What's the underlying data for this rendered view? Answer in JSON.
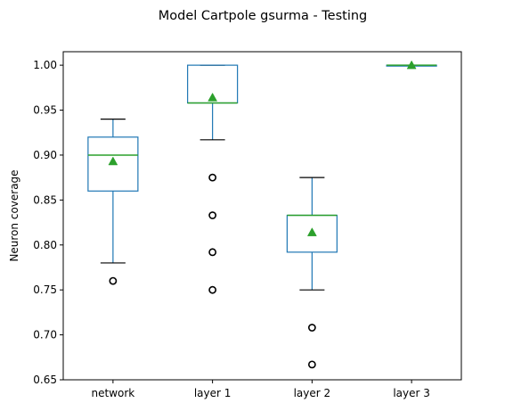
{
  "chart_data": {
    "type": "box",
    "title": "Model Cartpole gsurma - Testing",
    "xlabel": "",
    "ylabel": "Neuron coverage",
    "ylim": [
      0.65,
      1.015
    ],
    "yticks": [
      "0.65",
      "0.70",
      "0.75",
      "0.80",
      "0.85",
      "0.90",
      "0.95",
      "1.00"
    ],
    "grid": false,
    "legend": "none",
    "colors": {
      "box": "#1f77b4",
      "median": "#2ca02c",
      "mean": "#2ca02c",
      "whisker": "#1f77b4",
      "cap": "#000000",
      "flier": "#000000"
    },
    "categories": [
      "network",
      "layer 1",
      "layer 2",
      "layer 3"
    ],
    "boxes": [
      {
        "category": "network",
        "whisker_low": 0.78,
        "q1": 0.86,
        "median": 0.9,
        "q3": 0.92,
        "whisker_high": 0.94,
        "mean": 0.893,
        "outliers": [
          0.76
        ]
      },
      {
        "category": "layer 1",
        "whisker_low": 0.917,
        "q1": 0.958,
        "median": 0.958,
        "q3": 1.0,
        "whisker_high": 1.0,
        "mean": 0.964,
        "outliers": [
          0.875,
          0.833,
          0.792,
          0.75
        ]
      },
      {
        "category": "layer 2",
        "whisker_low": 0.75,
        "q1": 0.792,
        "median": 0.833,
        "q3": 0.833,
        "whisker_high": 0.875,
        "mean": 0.814,
        "outliers": [
          0.708,
          0.667
        ]
      },
      {
        "category": "layer 3",
        "whisker_low": 1.0,
        "q1": 1.0,
        "median": 1.0,
        "q3": 1.0,
        "whisker_high": 1.0,
        "mean": 1.0,
        "outliers": []
      }
    ]
  }
}
